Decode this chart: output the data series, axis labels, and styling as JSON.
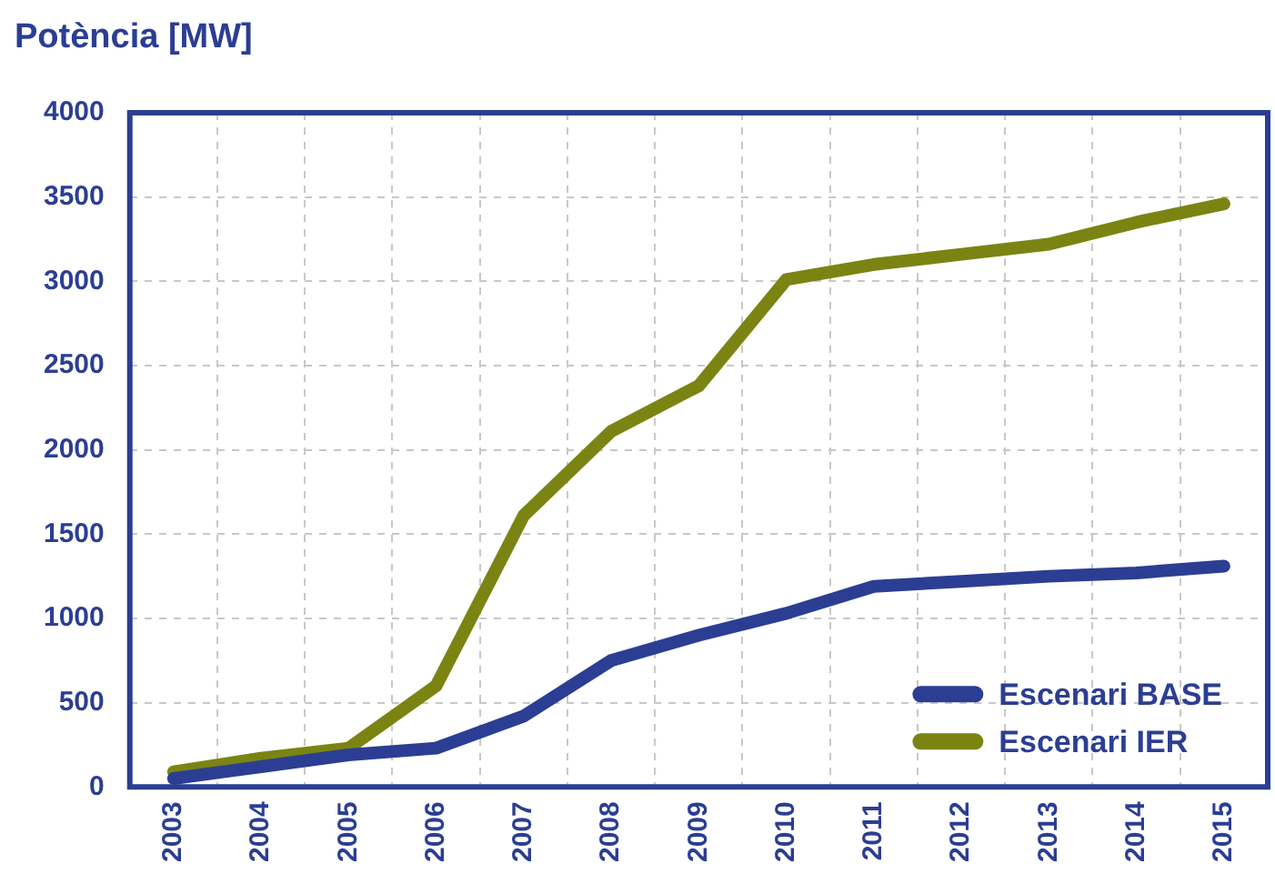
{
  "chart_data": {
    "type": "line",
    "ylabel": "Potència [MW]",
    "categories": [
      "2003",
      "2004",
      "2005",
      "2006",
      "2007",
      "2008",
      "2009",
      "2010",
      "2011",
      "2012",
      "2013",
      "2014",
      "2015"
    ],
    "series": [
      {
        "name": "Escenari BASE",
        "color": "#2b3e93",
        "values": [
          50,
          120,
          190,
          230,
          420,
          750,
          900,
          1030,
          1190,
          1220,
          1250,
          1270,
          1310
        ]
      },
      {
        "name": "Escenari IER",
        "color": "#7b8412",
        "values": [
          90,
          170,
          230,
          600,
          1610,
          2110,
          2380,
          3010,
          3100,
          3160,
          3220,
          3350,
          3460
        ]
      }
    ],
    "ylim": [
      0,
      4000
    ],
    "yticks": [
      0,
      500,
      1000,
      1500,
      2000,
      2500,
      3000,
      3500,
      4000
    ],
    "grid": true,
    "legend": "bottom right",
    "marker": "none",
    "line_style": "solid"
  }
}
